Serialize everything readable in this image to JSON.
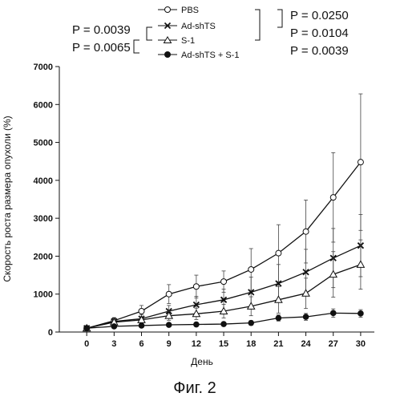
{
  "figure_caption": "Фиг. 2",
  "pvalues": {
    "left": [
      "P = 0.0039",
      "P = 0.0065"
    ],
    "right": [
      "P = 0.0250",
      "P = 0.0104",
      "P = 0.0039"
    ]
  },
  "chart_data": {
    "type": "line",
    "title": "",
    "xlabel": "День",
    "ylabel": "Скорость роста размера опухоли (%)",
    "x": [
      0,
      3,
      6,
      9,
      12,
      15,
      18,
      21,
      24,
      27,
      30
    ],
    "xticks": [
      "0",
      "3",
      "6",
      "9",
      "12",
      "15",
      "18",
      "21",
      "24",
      "27",
      "30"
    ],
    "yticks": [
      "0",
      "1000",
      "2000",
      "3000",
      "4000",
      "5000",
      "6000",
      "7000"
    ],
    "xlim": [
      -3,
      31.5
    ],
    "ylim": [
      0,
      7000
    ],
    "legend_position": "top",
    "series": [
      {
        "name": "PBS",
        "marker": "open-circle",
        "values": [
          100,
          300,
          550,
          1000,
          1200,
          1330,
          1650,
          2080,
          2650,
          3550,
          4480
        ],
        "errors": [
          50,
          80,
          150,
          250,
          300,
          280,
          550,
          750,
          830,
          1180,
          1800
        ]
      },
      {
        "name": "Ad-shTS",
        "marker": "cross",
        "values": [
          100,
          280,
          350,
          550,
          720,
          850,
          1050,
          1280,
          1580,
          1950,
          2280
        ],
        "errors": [
          40,
          60,
          100,
          150,
          220,
          280,
          400,
          500,
          600,
          780,
          820
        ]
      },
      {
        "name": "S-1",
        "marker": "open-triangle",
        "values": [
          100,
          260,
          320,
          430,
          480,
          550,
          680,
          850,
          1020,
          1520,
          1780
        ],
        "errors": [
          40,
          60,
          90,
          120,
          150,
          180,
          250,
          350,
          400,
          600,
          650
        ]
      },
      {
        "name": "Ad-shTS + S-1",
        "marker": "filled-circle",
        "values": [
          100,
          150,
          170,
          190,
          200,
          210,
          240,
          370,
          400,
          500,
          490
        ],
        "errors": [
          20,
          30,
          40,
          40,
          50,
          50,
          60,
          80,
          90,
          110,
          100
        ]
      }
    ]
  }
}
